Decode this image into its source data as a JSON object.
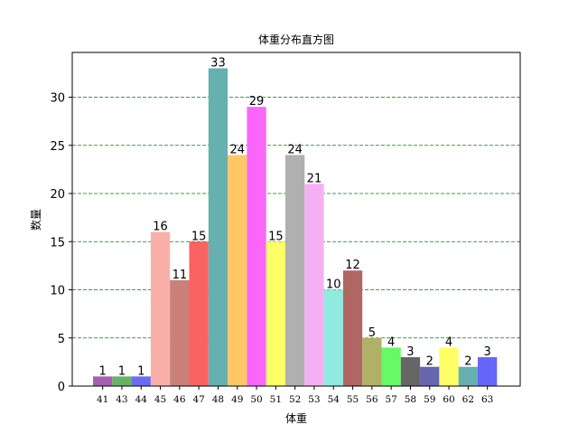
{
  "chart_data": {
    "type": "bar",
    "title": "体重分布直方图",
    "xlabel": "体重",
    "ylabel": "数量",
    "categories": [
      "41",
      "43",
      "44",
      "45",
      "46",
      "47",
      "48",
      "49",
      "50",
      "51",
      "52",
      "53",
      "54",
      "55",
      "56",
      "57",
      "58",
      "59",
      "60",
      "62",
      "63"
    ],
    "values": [
      1,
      1,
      1,
      16,
      11,
      15,
      33,
      24,
      29,
      15,
      24,
      21,
      10,
      12,
      5,
      4,
      3,
      2,
      4,
      2,
      3
    ],
    "colors": [
      "#a65fb0",
      "#66b266",
      "#6b6bf5",
      "#fab0a8",
      "#c98078",
      "#fb6262",
      "#66b0b0",
      "#fec866",
      "#fa66fa",
      "#fefe66",
      "#b0b0b0",
      "#f5b0f5",
      "#90eae0",
      "#b06662",
      "#b0b066",
      "#66fa66",
      "#666666",
      "#6666b0",
      "#fefe66",
      "#66b0b0",
      "#6666fa"
    ],
    "yticks": [
      0,
      5,
      10,
      15,
      20,
      25,
      30
    ],
    "ylim": [
      0,
      34.65
    ],
    "grid": "horizontal dashed green"
  }
}
